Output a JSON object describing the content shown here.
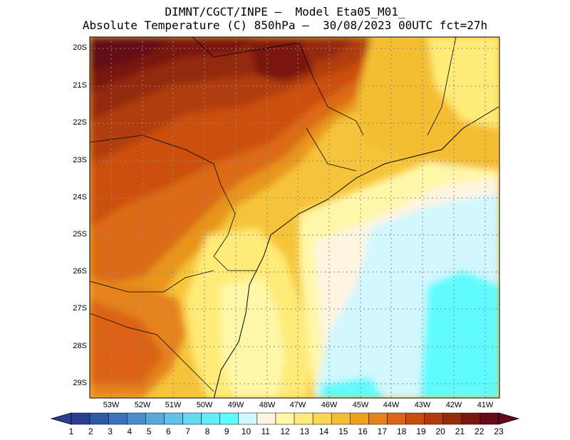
{
  "header": {
    "line1": "DIMNT/CGCT/INPE –  Model Eta05_M01_",
    "line2": "Absolute Temperature (C) 850hPa –  30/08/2023 00UTC fct=27h"
  },
  "map": {
    "lat_ticks": [
      "20S",
      "21S",
      "22S",
      "23S",
      "24S",
      "25S",
      "26S",
      "27S",
      "28S",
      "29S"
    ],
    "lon_ticks": [
      "53W",
      "52W",
      "51W",
      "50W",
      "49W",
      "48W",
      "47W",
      "46W",
      "45W",
      "44W",
      "43W",
      "42W",
      "41W"
    ]
  },
  "colorbar": {
    "labels": [
      "1",
      "2",
      "3",
      "4",
      "5",
      "6",
      "7",
      "8",
      "9",
      "10",
      "11",
      "12",
      "13",
      "14",
      "15",
      "16",
      "17",
      "18",
      "19",
      "20",
      "21",
      "22",
      "23"
    ],
    "colors": [
      "#2a3f8f",
      "#2f5aa8",
      "#3a72bb",
      "#4a8ccc",
      "#5aa7dc",
      "#5fc3e8",
      "#63dcef",
      "#62eef6",
      "#5ffbff",
      "#d2f7ff",
      "#fff4e0",
      "#fff7a8",
      "#ffeb78",
      "#fbd652",
      "#f4bd32",
      "#eea21b",
      "#e5831a",
      "#dc6414",
      "#cc4c0e",
      "#b33a0c",
      "#962a0c",
      "#7a180e",
      "#640a18"
    ]
  }
}
